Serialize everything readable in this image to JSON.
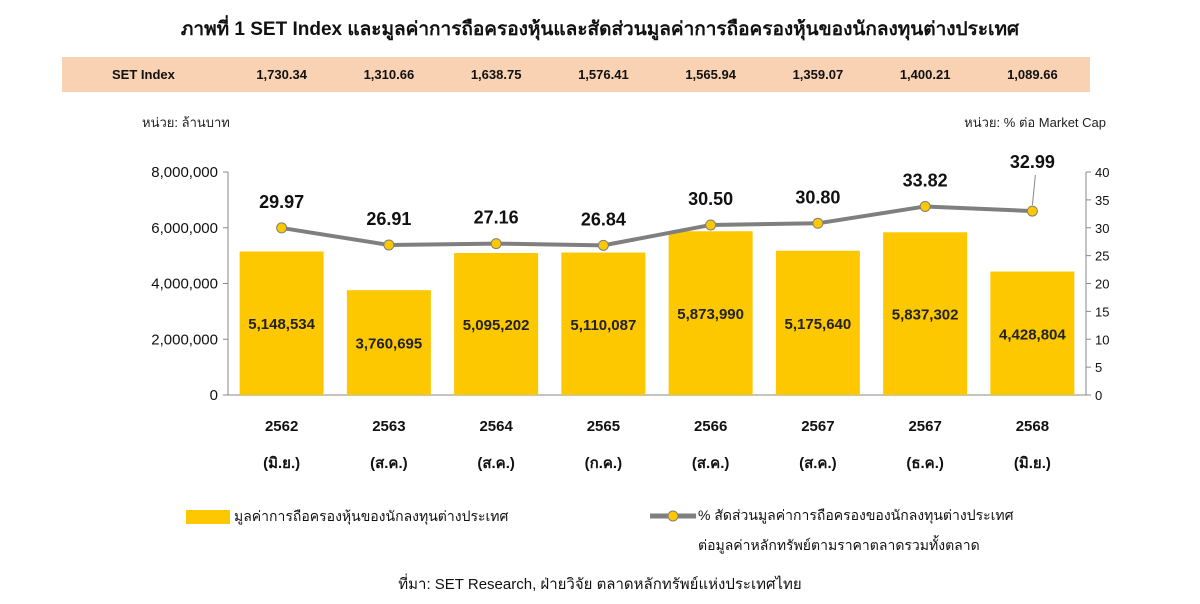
{
  "title": "ภาพที่ 1 SET Index และมูลค่าการถือครองหุ้นและสัดส่วนมูลค่าการถือครองหุ้นของนักลงทุนต่างประเทศ",
  "set_index": {
    "label": "SET Index",
    "values": [
      "1,730.34",
      "1,310.66",
      "1,638.75",
      "1,576.41",
      "1,565.94",
      "1,359.07",
      "1,400.21",
      "1,089.66"
    ]
  },
  "unit_left": "หน่วย: ล้านบาท",
  "unit_right": "หน่วย: % ต่อ Market Cap",
  "source": "ที่มา: SET Research, ฝ่ายวิจัย ตลาดหลักทรัพย์แห่งประเทศไทย",
  "chart_data": {
    "type": "bar+line",
    "categories": [
      [
        "2562",
        "(มิ.ย.)"
      ],
      [
        "2563",
        "(ส.ค.)"
      ],
      [
        "2564",
        "(ส.ค.)"
      ],
      [
        "2565",
        "(ก.ค.)"
      ],
      [
        "2566",
        "(ส.ค.)"
      ],
      [
        "2567",
        "(ส.ค.)"
      ],
      [
        "2567",
        "(ธ.ค.)"
      ],
      [
        "2568",
        "(มิ.ย.)"
      ]
    ],
    "series": [
      {
        "name": "มูลค่าการถือครองหุ้นของนักลงทุนต่างประเทศ",
        "type": "bar",
        "axis": "left",
        "color": "#fdc800",
        "values": [
          5148534,
          3760695,
          5095202,
          5110087,
          5873990,
          5175640,
          5837302,
          4428804
        ],
        "labels": [
          "5,148,534",
          "3,760,695",
          "5,095,202",
          "5,110,087",
          "5,873,990",
          "5,175,640",
          "5,837,302",
          "4,428,804"
        ]
      },
      {
        "name": "% สัดส่วนมูลค่าการถือครองของนักลงทุนต่างประเทศ",
        "name_line2": "ต่อมูลค่าหลักทรัพย์ตามราคาตลาดรวมทั้งตลาด",
        "type": "line",
        "axis": "right",
        "color": "#7f7f7f",
        "marker_color": "#fdc800",
        "values": [
          29.97,
          26.91,
          27.16,
          26.84,
          30.5,
          30.8,
          33.82,
          32.99
        ],
        "labels": [
          "29.97",
          "26.91",
          "27.16",
          "26.84",
          "30.50",
          "30.80",
          "33.82",
          "32.99"
        ]
      }
    ],
    "y_left": {
      "range": [
        0,
        8000000
      ],
      "ticks": [
        "0",
        "2,000,000",
        "4,000,000",
        "6,000,000",
        "8,000,000"
      ]
    },
    "y_right": {
      "range": [
        0,
        40
      ],
      "ticks": [
        "0",
        "5",
        "10",
        "15",
        "20",
        "25",
        "30",
        "35",
        "40"
      ]
    },
    "grid": false,
    "legend": "bottom"
  }
}
